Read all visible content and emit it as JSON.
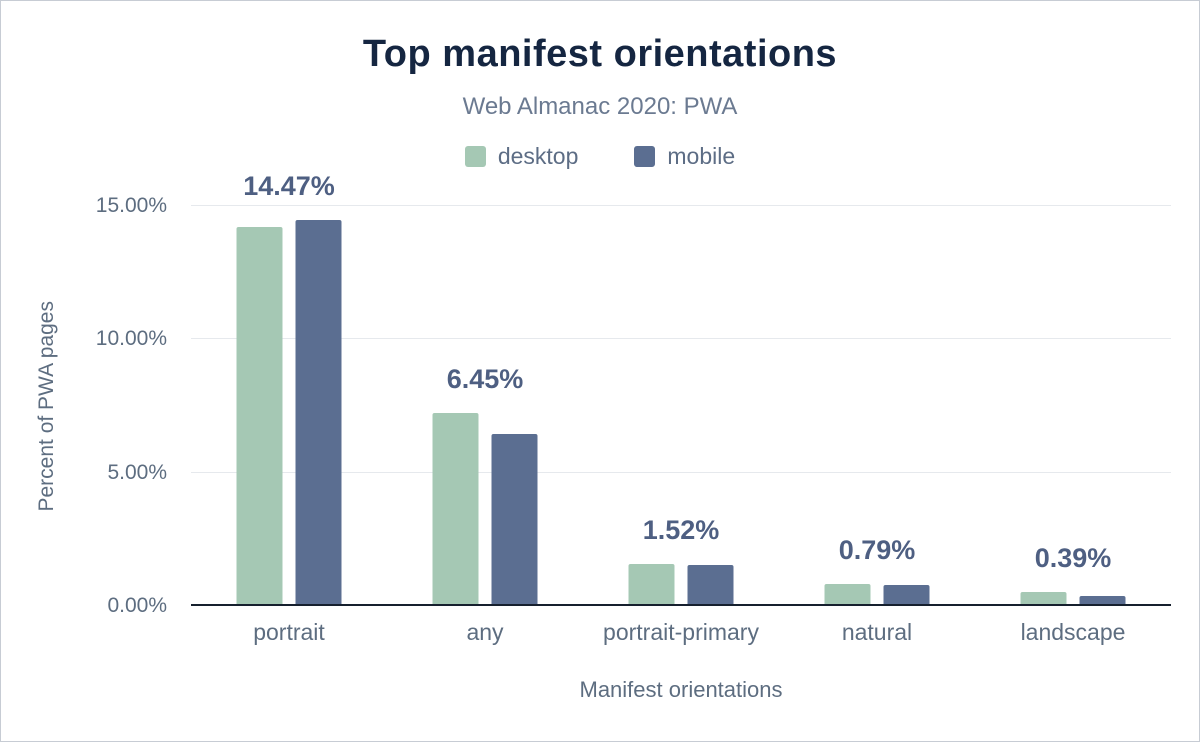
{
  "chart_data": {
    "type": "bar",
    "title": "Top manifest orientations",
    "subtitle": "Web Almanac 2020: PWA",
    "xlabel": "Manifest orientations",
    "ylabel": "Percent of PWA pages",
    "categories": [
      "portrait",
      "any",
      "portrait-primary",
      "natural",
      "landscape"
    ],
    "series": [
      {
        "name": "desktop",
        "color": "#a5c8b4",
        "values": [
          14.23,
          7.25,
          1.57,
          0.84,
          0.52
        ]
      },
      {
        "name": "mobile",
        "color": "#5b6e91",
        "values": [
          14.47,
          6.45,
          1.52,
          0.79,
          0.39
        ]
      }
    ],
    "value_labels": [
      "14.47%",
      "6.45%",
      "1.52%",
      "0.79%",
      "0.39%"
    ],
    "ylim": [
      0,
      15
    ],
    "yticks": [
      {
        "value": 0,
        "label": "0.00%"
      },
      {
        "value": 5,
        "label": "5.00%"
      },
      {
        "value": 10,
        "label": "10.00%"
      },
      {
        "value": 15,
        "label": "15.00%"
      }
    ],
    "grid": "horizontal",
    "legend_position": "top"
  },
  "colors": {
    "title": "#152641",
    "subtitle": "#6b7a91",
    "axis_text": "#5d6d80",
    "value_label": "#4e5f82",
    "gridline": "#e6e9ed",
    "axis_line": "#16202e"
  }
}
